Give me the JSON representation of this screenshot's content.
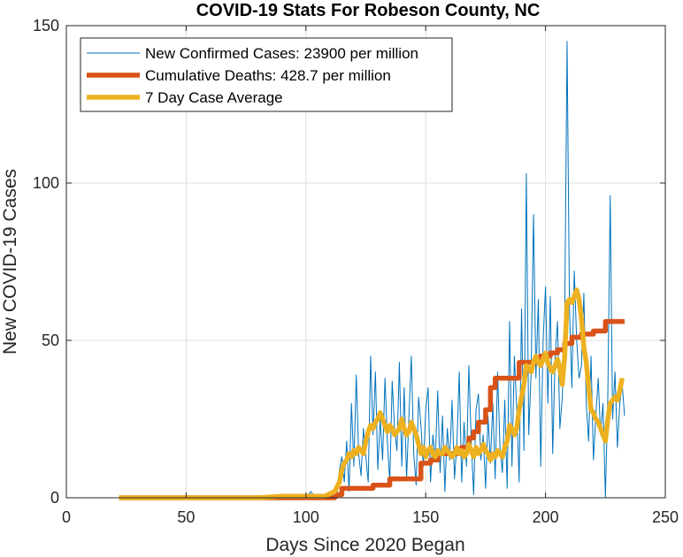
{
  "chart_data": {
    "type": "line",
    "title": "COVID-19 Stats For Robeson County, NC",
    "xlabel": "Days Since 2020 Began",
    "ylabel": "New COVID-19 Cases",
    "xlim": [
      0,
      250
    ],
    "ylim": [
      0,
      150
    ],
    "xticks": [
      0,
      50,
      100,
      150,
      200,
      250
    ],
    "yticks": [
      0,
      50,
      100,
      150
    ],
    "grid": true,
    "legend_position": "top-left",
    "series": [
      {
        "name": "New Confirmed Cases: 23900 per million",
        "color": "#0072BD",
        "points": [
          [
            22,
            0
          ],
          [
            30,
            0
          ],
          [
            40,
            0
          ],
          [
            50,
            0
          ],
          [
            60,
            0
          ],
          [
            70,
            0
          ],
          [
            80,
            0
          ],
          [
            85,
            0
          ],
          [
            90,
            0
          ],
          [
            95,
            0
          ],
          [
            100,
            0
          ],
          [
            102,
            2
          ],
          [
            104,
            0
          ],
          [
            106,
            1
          ],
          [
            108,
            0
          ],
          [
            110,
            2
          ],
          [
            111,
            0
          ],
          [
            112,
            3
          ],
          [
            113,
            1
          ],
          [
            114,
            9
          ],
          [
            115,
            13
          ],
          [
            116,
            5
          ],
          [
            117,
            18
          ],
          [
            118,
            2
          ],
          [
            119,
            30
          ],
          [
            120,
            10
          ],
          [
            121,
            39
          ],
          [
            122,
            14
          ],
          [
            123,
            7
          ],
          [
            124,
            22
          ],
          [
            125,
            13
          ],
          [
            126,
            5
          ],
          [
            127,
            45
          ],
          [
            128,
            20
          ],
          [
            129,
            40
          ],
          [
            130,
            9
          ],
          [
            131,
            25
          ],
          [
            132,
            12
          ],
          [
            133,
            38
          ],
          [
            134,
            18
          ],
          [
            135,
            5
          ],
          [
            136,
            37
          ],
          [
            137,
            22
          ],
          [
            138,
            15
          ],
          [
            139,
            43
          ],
          [
            140,
            10
          ],
          [
            141,
            35
          ],
          [
            142,
            6
          ],
          [
            143,
            26
          ],
          [
            144,
            45
          ],
          [
            145,
            14
          ],
          [
            146,
            4
          ],
          [
            147,
            32
          ],
          [
            148,
            23
          ],
          [
            149,
            10
          ],
          [
            150,
            28
          ],
          [
            151,
            35
          ],
          [
            152,
            5
          ],
          [
            153,
            20
          ],
          [
            154,
            12
          ],
          [
            155,
            34
          ],
          [
            156,
            8
          ],
          [
            157,
            26
          ],
          [
            158,
            2
          ],
          [
            159,
            22
          ],
          [
            160,
            12
          ],
          [
            161,
            31
          ],
          [
            162,
            6
          ],
          [
            163,
            17
          ],
          [
            164,
            40
          ],
          [
            165,
            5
          ],
          [
            166,
            24
          ],
          [
            167,
            10
          ],
          [
            168,
            42
          ],
          [
            169,
            18
          ],
          [
            170,
            1
          ],
          [
            171,
            28
          ],
          [
            172,
            33
          ],
          [
            173,
            12
          ],
          [
            174,
            20
          ],
          [
            175,
            3
          ],
          [
            176,
            26
          ],
          [
            177,
            11
          ],
          [
            178,
            30
          ],
          [
            179,
            6
          ],
          [
            180,
            40
          ],
          [
            181,
            16
          ],
          [
            182,
            8
          ],
          [
            183,
            31
          ],
          [
            184,
            3
          ],
          [
            185,
            56
          ],
          [
            186,
            10
          ],
          [
            187,
            45
          ],
          [
            188,
            28
          ],
          [
            189,
            5
          ],
          [
            190,
            60
          ],
          [
            191,
            15
          ],
          [
            192,
            103
          ],
          [
            193,
            20
          ],
          [
            194,
            40
          ],
          [
            195,
            90
          ],
          [
            196,
            38
          ],
          [
            197,
            63
          ],
          [
            198,
            10
          ],
          [
            199,
            50
          ],
          [
            200,
            67
          ],
          [
            201,
            30
          ],
          [
            202,
            64
          ],
          [
            203,
            14
          ],
          [
            204,
            45
          ],
          [
            205,
            56
          ],
          [
            206,
            22
          ],
          [
            207,
            32
          ],
          [
            208,
            56
          ],
          [
            209,
            145
          ],
          [
            210,
            60
          ],
          [
            211,
            35
          ],
          [
            212,
            72
          ],
          [
            213,
            50
          ],
          [
            214,
            38
          ],
          [
            215,
            42
          ],
          [
            216,
            65
          ],
          [
            217,
            30
          ],
          [
            218,
            18
          ],
          [
            219,
            45
          ],
          [
            220,
            12
          ],
          [
            221,
            26
          ],
          [
            222,
            38
          ],
          [
            223,
            20
          ],
          [
            224,
            30
          ],
          [
            225,
            0
          ],
          [
            226,
            32
          ],
          [
            227,
            96
          ],
          [
            228,
            25
          ],
          [
            229,
            40
          ],
          [
            230,
            16
          ],
          [
            231,
            30
          ],
          [
            232,
            36
          ],
          [
            233,
            26
          ]
        ]
      },
      {
        "name": "Cumulative Deaths: 428.7 per million",
        "color": "#D95319",
        "points": [
          [
            22,
            0
          ],
          [
            80,
            0
          ],
          [
            100,
            0
          ],
          [
            112,
            0
          ],
          [
            113,
            1
          ],
          [
            115,
            1
          ],
          [
            115,
            3
          ],
          [
            128,
            3
          ],
          [
            128,
            4
          ],
          [
            135,
            4
          ],
          [
            135,
            6
          ],
          [
            148,
            6
          ],
          [
            148,
            11
          ],
          [
            152,
            11
          ],
          [
            152,
            12
          ],
          [
            155,
            12
          ],
          [
            155,
            14
          ],
          [
            165,
            14
          ],
          [
            165,
            16
          ],
          [
            168,
            16
          ],
          [
            168,
            19
          ],
          [
            170,
            19
          ],
          [
            170,
            21
          ],
          [
            172,
            21
          ],
          [
            172,
            24
          ],
          [
            175,
            24
          ],
          [
            175,
            28
          ],
          [
            177,
            28
          ],
          [
            177,
            35
          ],
          [
            179,
            35
          ],
          [
            179,
            38
          ],
          [
            189,
            38
          ],
          [
            189,
            43
          ],
          [
            198,
            43
          ],
          [
            198,
            45
          ],
          [
            202,
            45
          ],
          [
            202,
            46
          ],
          [
            205,
            46
          ],
          [
            205,
            47
          ],
          [
            208,
            47
          ],
          [
            208,
            49
          ],
          [
            211,
            49
          ],
          [
            211,
            51
          ],
          [
            215,
            51
          ],
          [
            215,
            52
          ],
          [
            220,
            52
          ],
          [
            220,
            53
          ],
          [
            225,
            53
          ],
          [
            225,
            56
          ],
          [
            233,
            56
          ]
        ]
      },
      {
        "name": "7 Day Case Average",
        "color": "#EDB120",
        "points": [
          [
            22,
            0
          ],
          [
            80,
            0
          ],
          [
            90,
            0.5
          ],
          [
            100,
            0.5
          ],
          [
            108,
            0.5
          ],
          [
            112,
            2
          ],
          [
            114,
            5
          ],
          [
            115,
            9
          ],
          [
            116,
            11
          ],
          [
            117,
            12
          ],
          [
            118,
            14
          ],
          [
            119,
            13
          ],
          [
            120,
            15
          ],
          [
            121,
            14
          ],
          [
            122,
            16
          ],
          [
            123,
            15
          ],
          [
            124,
            14
          ],
          [
            125,
            18
          ],
          [
            126,
            21
          ],
          [
            127,
            23
          ],
          [
            128,
            22
          ],
          [
            129,
            24
          ],
          [
            130,
            25
          ],
          [
            131,
            27
          ],
          [
            132,
            25
          ],
          [
            133,
            23
          ],
          [
            134,
            21
          ],
          [
            135,
            23
          ],
          [
            136,
            22
          ],
          [
            137,
            20
          ],
          [
            138,
            21
          ],
          [
            139,
            22
          ],
          [
            140,
            25
          ],
          [
            141,
            22
          ],
          [
            142,
            20
          ],
          [
            143,
            21
          ],
          [
            144,
            24
          ],
          [
            145,
            22
          ],
          [
            146,
            20
          ],
          [
            147,
            17
          ],
          [
            148,
            14
          ],
          [
            149,
            16
          ],
          [
            150,
            13
          ],
          [
            151,
            15
          ],
          [
            152,
            16
          ],
          [
            153,
            14
          ],
          [
            154,
            13
          ],
          [
            155,
            15
          ],
          [
            156,
            14
          ],
          [
            157,
            14
          ],
          [
            158,
            16
          ],
          [
            159,
            15
          ],
          [
            160,
            14
          ],
          [
            161,
            13
          ],
          [
            162,
            14
          ],
          [
            163,
            16
          ],
          [
            164,
            14
          ],
          [
            165,
            15
          ],
          [
            166,
            13
          ],
          [
            167,
            14
          ],
          [
            168,
            17
          ],
          [
            169,
            15
          ],
          [
            170,
            13
          ],
          [
            171,
            16
          ],
          [
            172,
            14
          ],
          [
            173,
            15
          ],
          [
            174,
            17
          ],
          [
            175,
            15
          ],
          [
            176,
            14
          ],
          [
            177,
            12
          ],
          [
            178,
            14
          ],
          [
            179,
            13
          ],
          [
            180,
            15
          ],
          [
            181,
            14
          ],
          [
            182,
            13
          ],
          [
            183,
            16
          ],
          [
            184,
            18
          ],
          [
            185,
            23
          ],
          [
            186,
            22
          ],
          [
            187,
            20
          ],
          [
            188,
            22
          ],
          [
            189,
            28
          ],
          [
            190,
            32
          ],
          [
            191,
            36
          ],
          [
            192,
            42
          ],
          [
            193,
            41
          ],
          [
            194,
            40
          ],
          [
            195,
            43
          ],
          [
            196,
            45
          ],
          [
            197,
            43
          ],
          [
            198,
            42
          ],
          [
            199,
            44
          ],
          [
            200,
            46
          ],
          [
            201,
            43
          ],
          [
            202,
            41
          ],
          [
            203,
            40
          ],
          [
            204,
            42
          ],
          [
            205,
            44
          ],
          [
            206,
            41
          ],
          [
            207,
            36
          ],
          [
            208,
            45
          ],
          [
            209,
            62
          ],
          [
            210,
            63
          ],
          [
            211,
            62
          ],
          [
            212,
            64
          ],
          [
            213,
            66
          ],
          [
            214,
            63
          ],
          [
            215,
            57
          ],
          [
            216,
            48
          ],
          [
            217,
            43
          ],
          [
            218,
            35
          ],
          [
            219,
            28
          ],
          [
            220,
            27
          ],
          [
            221,
            25
          ],
          [
            222,
            24
          ],
          [
            223,
            22
          ],
          [
            224,
            20
          ],
          [
            225,
            18
          ],
          [
            226,
            25
          ],
          [
            227,
            30
          ],
          [
            228,
            31
          ],
          [
            229,
            32
          ],
          [
            230,
            31
          ],
          [
            231,
            34
          ],
          [
            232,
            38
          ]
        ]
      }
    ]
  }
}
